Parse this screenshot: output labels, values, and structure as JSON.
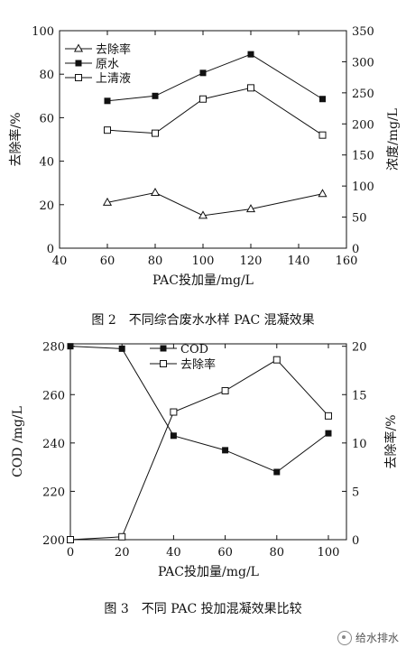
{
  "chart_data": [
    {
      "type": "line",
      "x": [
        60,
        80,
        100,
        120,
        150
      ],
      "xlabel": "PAC投加量/mg/L",
      "ylabel": "去除率/%",
      "ylabel_right": "浓度/mg/L",
      "xlim": [
        40,
        160
      ],
      "ylim": [
        0,
        100
      ],
      "ylim_right": [
        0,
        350
      ],
      "xticks": [
        "40",
        "60",
        "80",
        "100",
        "120",
        "140",
        "160"
      ],
      "yticks": [
        "0",
        "20",
        "40",
        "60",
        "80",
        "100"
      ],
      "yticks_right": [
        "0",
        "50",
        "100",
        "150",
        "200",
        "250",
        "300",
        "350"
      ],
      "legend_position": "top-left",
      "series": [
        {
          "name": "去除率",
          "marker": "open-triangle",
          "axis": "left",
          "values": [
            21,
            25.5,
            15,
            18,
            25
          ]
        },
        {
          "name": "原水",
          "marker": "filled-square",
          "axis": "right",
          "values": [
            237,
            245,
            282,
            312,
            240
          ]
        },
        {
          "name": "上清液",
          "marker": "open-square",
          "axis": "right",
          "values": [
            190,
            185,
            240,
            258,
            182
          ]
        }
      ]
    },
    {
      "type": "line",
      "x": [
        0,
        20,
        40,
        60,
        80,
        100
      ],
      "xlabel": "PAC投加量/mg/L",
      "ylabel": "COD /mg/L",
      "ylabel_right": "去除率/%",
      "xlim": [
        0,
        107
      ],
      "ylim": [
        200,
        281
      ],
      "ylim_right": [
        0,
        20.25
      ],
      "xticks": [
        "0",
        "20",
        "40",
        "60",
        "80",
        "100"
      ],
      "yticks": [
        "200",
        "220",
        "240",
        "260",
        "280"
      ],
      "yticks_right": [
        "0",
        "5",
        "10",
        "15",
        "20"
      ],
      "legend_position": "top-center",
      "series": [
        {
          "name": "COD",
          "marker": "filled-square",
          "axis": "left",
          "values": [
            280,
            279,
            243,
            237,
            228,
            244
          ]
        },
        {
          "name": "去除率",
          "marker": "open-square",
          "axis": "right",
          "values": [
            0,
            0.3,
            13.2,
            15.4,
            18.6,
            12.8
          ]
        }
      ]
    }
  ],
  "captions": {
    "fig2": "图 2　不同综合废水水样 PAC 混凝效果",
    "fig3": "图 3　不同 PAC 投加混凝效果比较"
  },
  "watermark": {
    "text": "给水排水",
    "icon": "wechat-logo-icon"
  }
}
